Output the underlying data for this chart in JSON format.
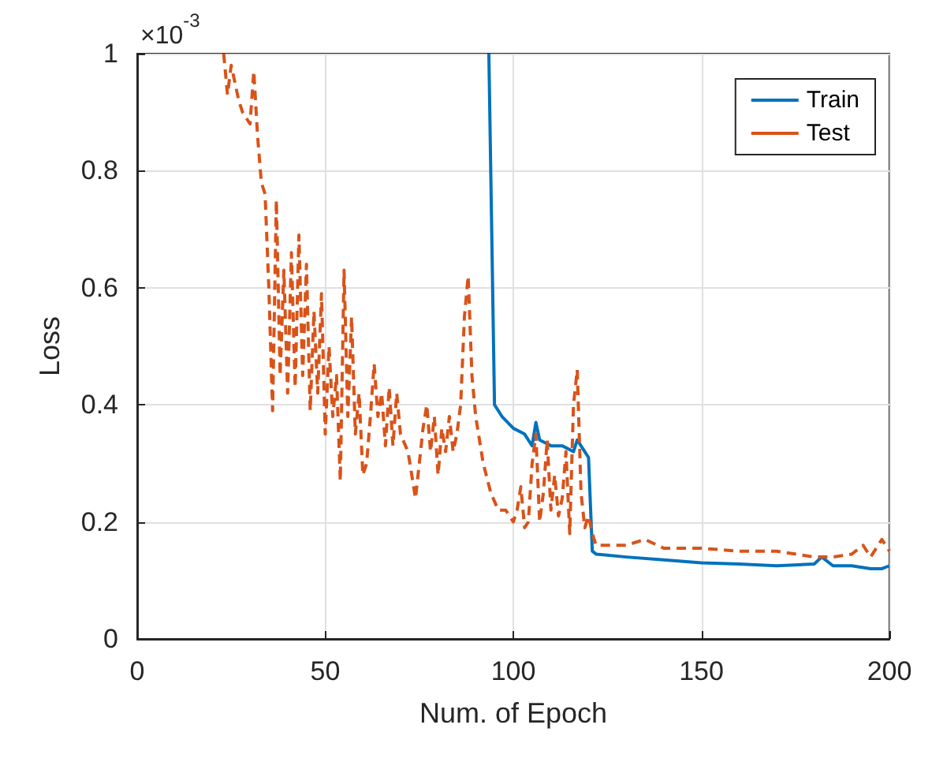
{
  "chart_data": {
    "type": "line",
    "xlabel": "Num. of Epoch",
    "ylabel": "Loss",
    "annotations": [
      "×10$^{-3}$"
    ],
    "xlim": [
      0,
      200
    ],
    "xticks": [
      0,
      50,
      100,
      150,
      200
    ],
    "ylim": [
      0,
      1
    ],
    "yticks": [
      0,
      0.2,
      0.4,
      0.6,
      0.8,
      1
    ],
    "grid": true,
    "legend": "top right",
    "marker": "none",
    "series": [
      {
        "name": "Train",
        "color": "#0072bd",
        "line_style": "solid",
        "x": [
          93.5,
          95,
          97,
          100,
          103,
          105,
          106,
          107,
          110,
          113,
          116,
          117,
          119,
          120,
          121,
          122,
          130,
          140,
          150,
          160,
          170,
          180,
          182,
          185,
          190,
          195,
          198,
          200
        ],
        "values": [
          1,
          0.4,
          0.38,
          0.36,
          0.35,
          0.33,
          0.37,
          0.34,
          0.33,
          0.33,
          0.32,
          0.34,
          0.32,
          0.31,
          0.15,
          0.145,
          0.14,
          0.135,
          0.13,
          0.128,
          0.125,
          0.128,
          0.14,
          0.125,
          0.125,
          0.12,
          0.12,
          0.125
        ]
      },
      {
        "name": "Test",
        "color": "#d95319",
        "line_style": "dashed",
        "x": [
          23,
          24,
          25,
          27,
          28,
          30,
          31,
          32,
          33,
          34,
          35,
          36,
          37,
          38,
          39,
          40,
          41,
          42,
          43,
          44,
          45,
          46,
          47,
          48,
          49,
          50,
          51,
          52,
          53,
          54,
          55,
          56,
          57,
          58,
          59,
          60,
          61,
          62,
          63,
          64,
          65,
          66,
          67,
          68,
          69,
          70,
          72,
          74,
          75,
          76,
          77,
          78,
          79,
          80,
          81,
          82,
          83,
          84,
          85,
          86,
          87,
          88,
          89,
          90,
          92,
          94,
          96,
          98,
          99,
          100,
          101,
          102,
          103,
          104,
          105,
          106,
          107,
          108,
          109,
          110,
          111,
          112,
          113,
          114,
          115,
          116,
          117,
          118,
          119,
          120,
          121,
          122,
          130,
          135,
          140,
          150,
          160,
          170,
          180,
          185,
          190,
          193,
          195,
          198,
          200
        ],
        "values": [
          1,
          0.93,
          0.98,
          0.92,
          0.9,
          0.88,
          0.97,
          0.86,
          0.78,
          0.76,
          0.6,
          0.39,
          0.75,
          0.45,
          0.63,
          0.42,
          0.66,
          0.43,
          0.69,
          0.45,
          0.64,
          0.39,
          0.56,
          0.42,
          0.59,
          0.35,
          0.5,
          0.38,
          0.45,
          0.27,
          0.63,
          0.38,
          0.55,
          0.35,
          0.42,
          0.28,
          0.3,
          0.38,
          0.47,
          0.38,
          0.42,
          0.33,
          0.43,
          0.33,
          0.42,
          0.35,
          0.32,
          0.24,
          0.3,
          0.36,
          0.4,
          0.32,
          0.38,
          0.28,
          0.36,
          0.32,
          0.38,
          0.32,
          0.35,
          0.4,
          0.55,
          0.62,
          0.45,
          0.38,
          0.3,
          0.25,
          0.22,
          0.22,
          0.21,
          0.2,
          0.22,
          0.26,
          0.19,
          0.2,
          0.3,
          0.35,
          0.2,
          0.25,
          0.34,
          0.22,
          0.28,
          0.21,
          0.24,
          0.32,
          0.18,
          0.4,
          0.46,
          0.25,
          0.19,
          0.21,
          0.18,
          0.16,
          0.16,
          0.17,
          0.155,
          0.155,
          0.15,
          0.15,
          0.14,
          0.14,
          0.145,
          0.16,
          0.14,
          0.17,
          0.15
        ]
      }
    ]
  }
}
